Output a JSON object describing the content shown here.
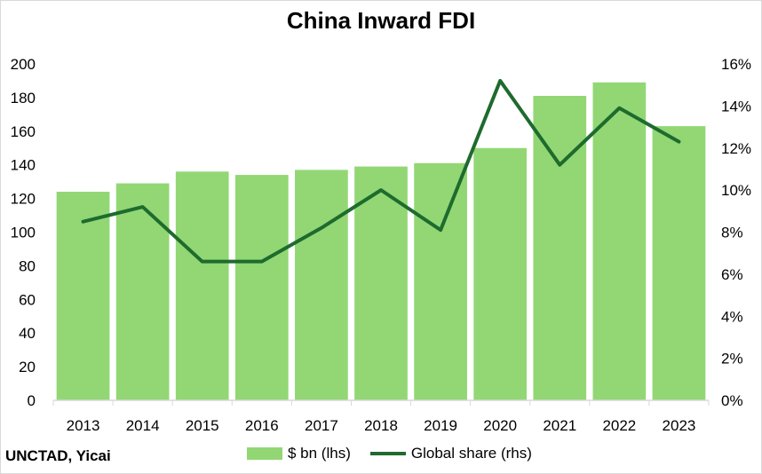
{
  "chart_data": {
    "type": "bar",
    "title": "China Inward FDI",
    "source": "UNCTAD, Yicai",
    "categories": [
      "2013",
      "2014",
      "2015",
      "2016",
      "2017",
      "2018",
      "2019",
      "2020",
      "2021",
      "2022",
      "2023"
    ],
    "series": [
      {
        "name": "$ bn (lhs)",
        "type": "bar",
        "axis": "left",
        "color": "#92d774",
        "values": [
          124,
          129,
          136,
          134,
          137,
          139,
          141,
          150,
          181,
          189,
          163
        ]
      },
      {
        "name": "Global share (rhs)",
        "type": "line",
        "axis": "right",
        "color": "#1e6b2e",
        "values": [
          8.5,
          9.2,
          6.6,
          6.6,
          8.2,
          10.0,
          8.1,
          15.2,
          11.2,
          13.9,
          12.3
        ]
      }
    ],
    "y_left": {
      "min": 0,
      "max": 200,
      "step": 20,
      "ticks": [
        "0",
        "20",
        "40",
        "60",
        "80",
        "100",
        "120",
        "140",
        "160",
        "180",
        "200"
      ]
    },
    "y_right": {
      "min": 0,
      "max": 16,
      "step": 2,
      "ticks": [
        "0%",
        "2%",
        "4%",
        "6%",
        "8%",
        "10%",
        "12%",
        "14%",
        "16%"
      ]
    },
    "grid": false,
    "legend_position": "bottom"
  }
}
